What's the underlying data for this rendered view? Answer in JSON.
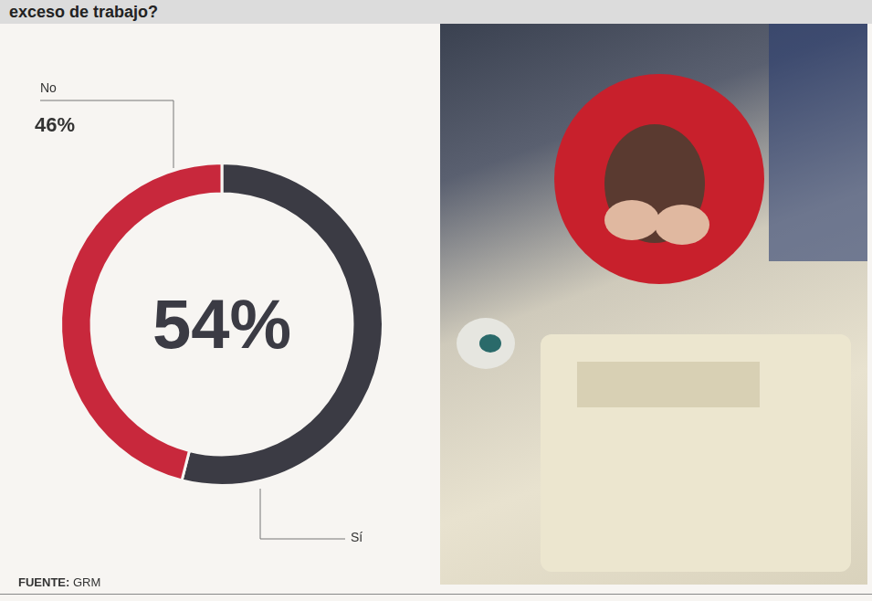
{
  "chart_data": {
    "type": "doughnut",
    "title": "exceso de trabajo?",
    "categories": [
      "Sí",
      "No"
    ],
    "values": [
      54,
      46
    ],
    "value_labels": [
      "54%",
      "46%"
    ],
    "colors": [
      "#3b3b44",
      "#c8283c"
    ],
    "data_labels": true,
    "source": "FUENTE: GRM"
  }
}
